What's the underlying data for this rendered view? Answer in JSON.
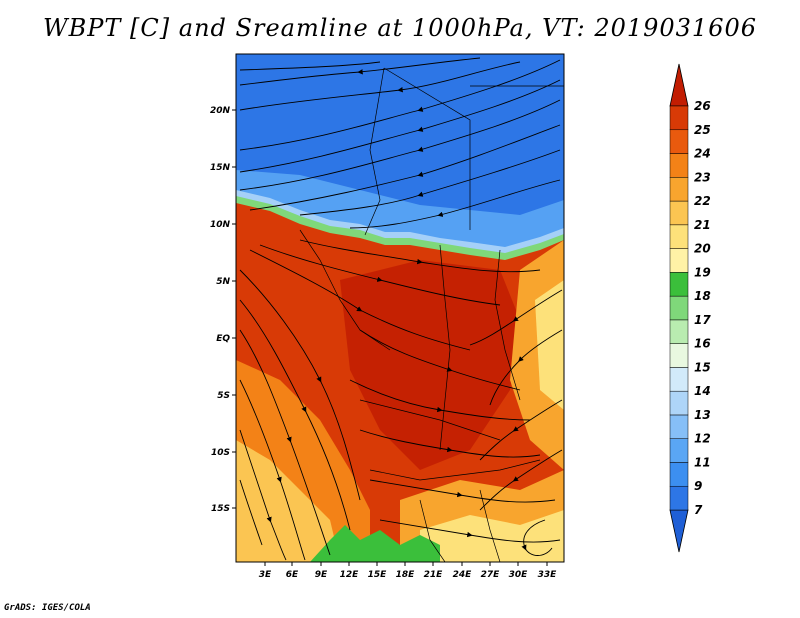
{
  "title": "WBPT [C] and Sreamline at 1000hPa, VT: 2019031606",
  "footer": "GrADS: IGES/COLA",
  "map": {
    "lat_labels": [
      "20N",
      "15N",
      "10N",
      "5N",
      "EQ",
      "5S",
      "10S",
      "15S"
    ],
    "lon_labels": [
      "3E",
      "6E",
      "9E",
      "12E",
      "15E",
      "18E",
      "21E",
      "24E",
      "27E",
      "30E",
      "33E"
    ]
  },
  "colorbar": {
    "labels": [
      "7",
      "9",
      "11",
      "12",
      "13",
      "14",
      "15",
      "16",
      "17",
      "18",
      "19",
      "20",
      "21",
      "22",
      "23",
      "24",
      "25",
      "26"
    ],
    "colors": [
      "#1f5fd6",
      "#2d76e6",
      "#3c8ff0",
      "#5aa6f4",
      "#86bff7",
      "#aed5f8",
      "#d2eafa",
      "#e9f8e0",
      "#b9ecb0",
      "#7fd87a",
      "#3bbf3b",
      "#fff2a6",
      "#fde17a",
      "#fbc552",
      "#f8a52e",
      "#f38217",
      "#e95a0e",
      "#d83a06",
      "#c21d02"
    ],
    "colors_note": "19 bands bottom-to-top from arrow (<7) to arrow (>26)"
  }
}
